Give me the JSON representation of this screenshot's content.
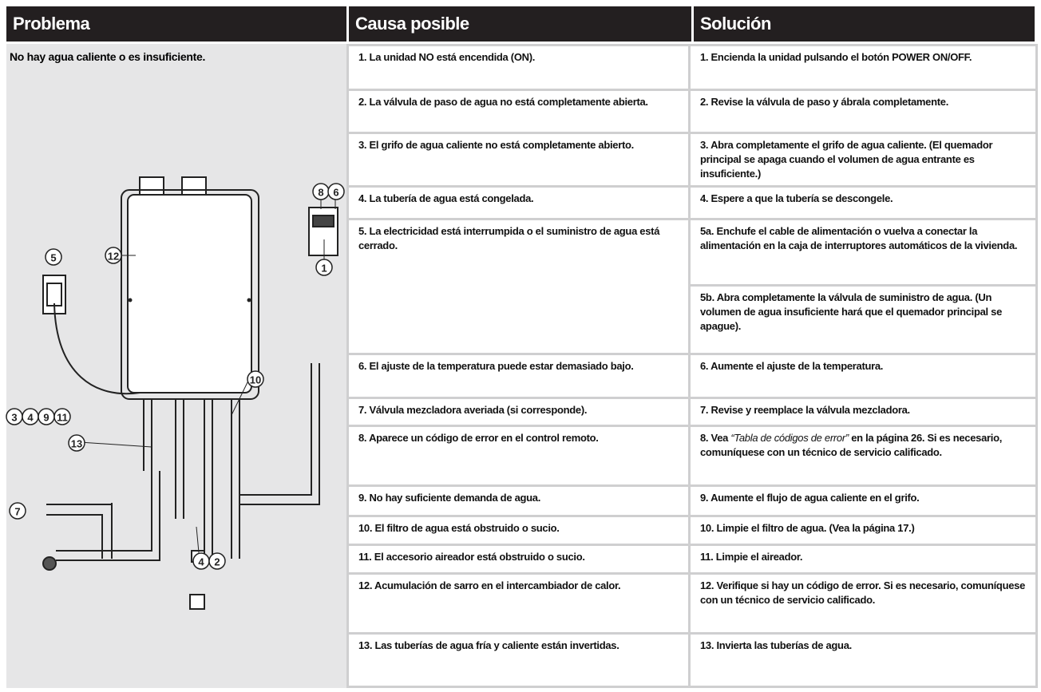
{
  "header": {
    "problem": "Problema",
    "cause": "Causa posible",
    "solution": "Solución"
  },
  "problem": "No hay agua caliente o es insuficiente.",
  "callouts": [
    "8",
    "6",
    "1",
    "5",
    "12",
    "10",
    "3",
    "4",
    "9",
    "11",
    "13",
    "7",
    "4",
    "2"
  ],
  "rows": [
    {
      "cause": "1. La unidad NO está encendida (ON).",
      "solution": "1. Encienda la unidad pulsando el botón POWER ON/OFF."
    },
    {
      "cause": "2. La válvula de paso de agua no está completamente abierta.",
      "solution": "2. Revise la válvula de paso y ábrala completamente."
    },
    {
      "cause": "3. El grifo de agua caliente no está completamente abierto.",
      "solution": "3. Abra completamente el grifo de agua caliente. (El quemador principal se apaga cuando el volumen de agua entrante es insuficiente.)"
    },
    {
      "cause": "4. La tubería de agua está congelada.",
      "solution": "4. Espere a que la tubería se descongele."
    },
    {
      "cause": "5. La electricidad está interrumpida o el suministro de agua está cerrado.",
      "solution": "5a. Enchufe el cable de alimentación o vuelva a conectar la alimentación en la caja de interruptores automáticos de la vivienda.",
      "solution_b": "5b. Abra completamente la válvula de suministro de agua. (Un volumen de agua insuficiente hará que el quemador principal se apague)."
    },
    {
      "cause": "6. El ajuste de la temperatura puede estar demasiado bajo.",
      "solution": "6. Aumente el ajuste de la temperatura."
    },
    {
      "cause": "7. Válvula mezcladora averiada (si corresponde).",
      "solution": "7. Revise y reemplace la válvula mezcladora."
    },
    {
      "cause": "8. Aparece un código de error en el control remoto.",
      "solution": "8. Vea ",
      "solution_ref": "“Tabla de códigos de error”",
      "solution_rest": " en la página 26. Si es necesario, comuníquese con un técnico de servicio calificado."
    },
    {
      "cause": "9. No hay suficiente demanda de agua.",
      "solution": "9. Aumente el flujo de agua caliente en el grifo."
    },
    {
      "cause": "10. El filtro de agua está obstruido o sucio.",
      "solution": "10. Limpie el filtro de agua. (Vea la página 17.)"
    },
    {
      "cause": "11. El accesorio aireador está obstruido o sucio.",
      "solution": "11. Limpie el aireador."
    },
    {
      "cause": "12. Acumulación de sarro en el intercambiador de calor.",
      "solution": "12. Verifique si hay un código de error. Si es necesario, comuníquese con un técnico de servicio calificado."
    },
    {
      "cause": "13. Las tuberías de agua fría y caliente están invertidas.",
      "solution": "13. Invierta las tuberías de agua."
    }
  ]
}
